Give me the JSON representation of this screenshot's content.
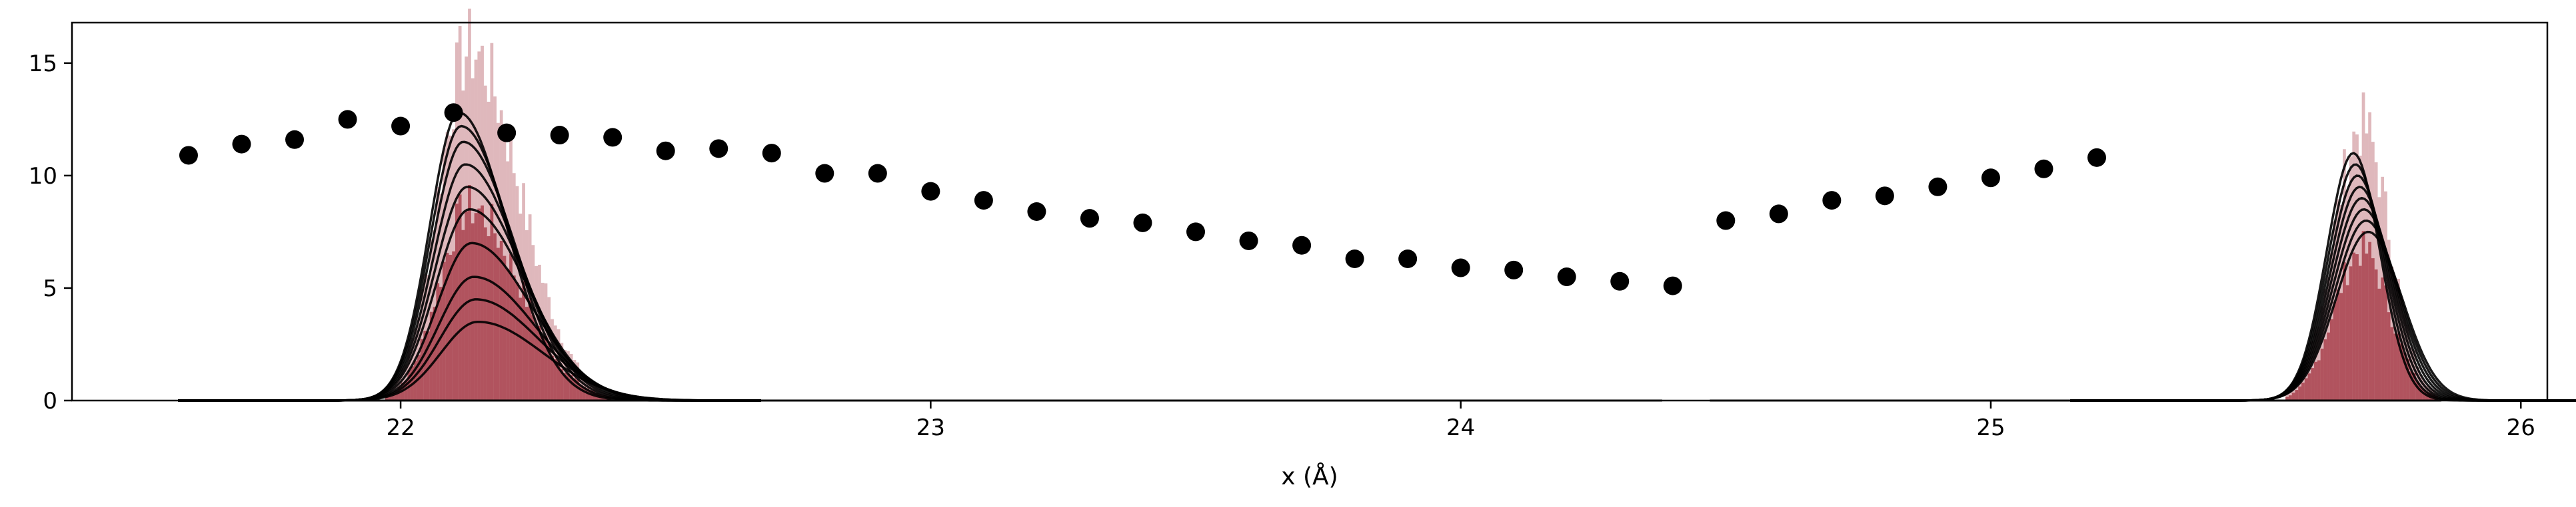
{
  "chart_data": {
    "type": "scatter",
    "xlabel": "x (Å)",
    "ylabel": "",
    "xlim": [
      21.38,
      26.05
    ],
    "ylim": [
      0,
      16.8
    ],
    "x_ticks": [
      22,
      23,
      24,
      25,
      26
    ],
    "x_tick_labels": [
      "22",
      "23",
      "24",
      "25",
      "26"
    ],
    "y_ticks": [
      0,
      5,
      10,
      15
    ],
    "y_tick_labels": [
      "0",
      "5",
      "10",
      "15"
    ],
    "grid": false,
    "colors": {
      "points": "#000000",
      "histogram": "#8b0010",
      "curves": "#000000"
    },
    "scatter_points": {
      "x": [
        21.6,
        21.7,
        21.8,
        21.9,
        22.0,
        22.1,
        22.2,
        22.3,
        22.4,
        22.5,
        22.6,
        22.7,
        22.8,
        22.9,
        23.0,
        23.1,
        23.2,
        23.3,
        23.4,
        23.5,
        23.6,
        23.7,
        23.8,
        23.9,
        24.0,
        24.1,
        24.2,
        24.3,
        24.4,
        24.5,
        24.6,
        24.7,
        24.8,
        24.9,
        25.0,
        25.1,
        25.2
      ],
      "y": [
        10.9,
        11.4,
        11.6,
        12.5,
        12.2,
        12.8,
        11.9,
        11.8,
        11.7,
        11.1,
        11.2,
        11.0,
        10.1,
        10.1,
        9.3,
        8.9,
        8.4,
        8.1,
        7.9,
        7.5,
        7.1,
        6.9,
        6.3,
        6.3,
        5.9,
        5.8,
        5.5,
        5.3,
        5.1,
        8.0,
        8.3,
        8.9,
        9.1,
        9.5,
        9.9,
        10.3,
        10.8
      ]
    },
    "distributions": [
      {
        "center": 22.13,
        "left_width": 0.055,
        "right_width": 0.09,
        "peaks": [
          12.8,
          12.2,
          11.5,
          10.5,
          9.5,
          8.5,
          7.0,
          5.5,
          4.5,
          3.5
        ],
        "hist_max": 16.0
      },
      {
        "center": 25.7,
        "left_width": 0.05,
        "right_width": 0.05,
        "peaks": [
          11.0,
          10.5,
          10.0,
          9.5,
          9.0,
          8.5,
          8.0,
          7.5
        ],
        "hist_max": 12.5
      }
    ]
  }
}
